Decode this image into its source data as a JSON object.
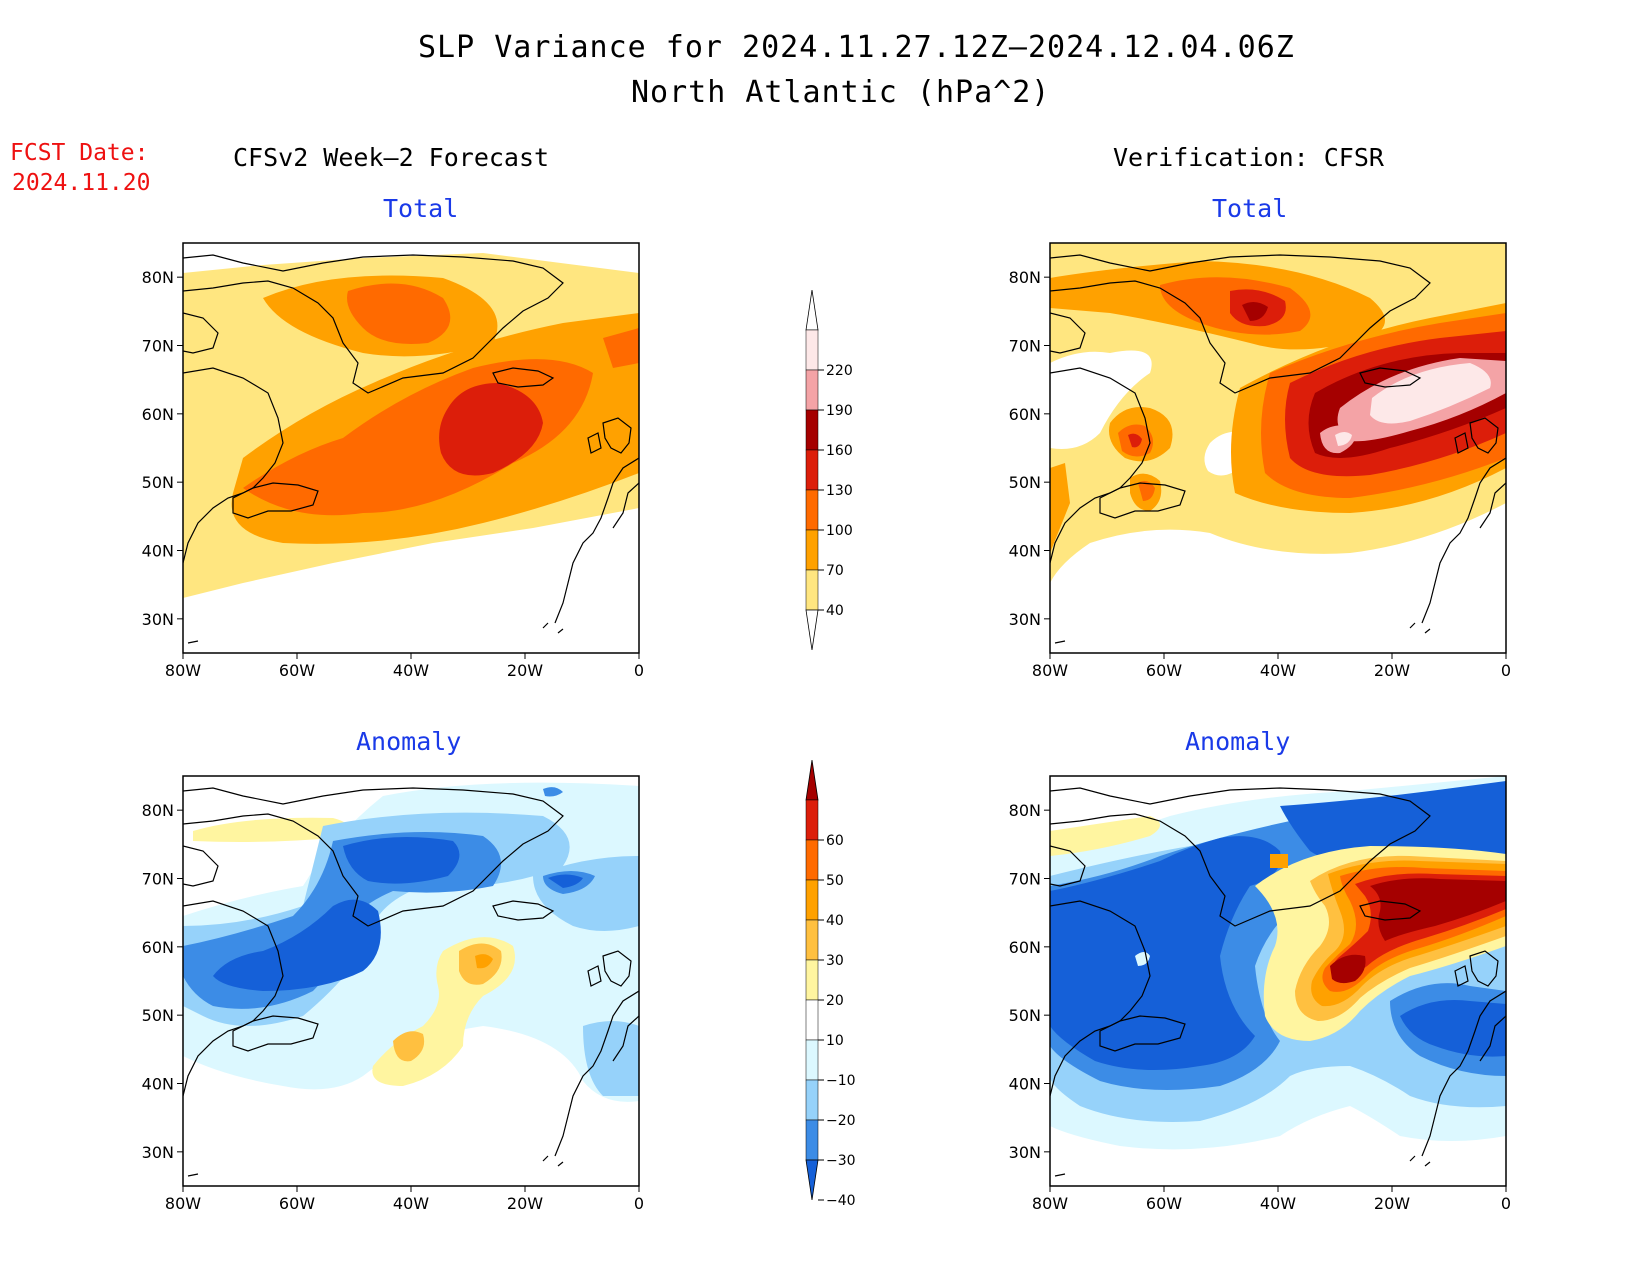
{
  "header": {
    "title_line1": "SLP Variance for 2024.11.27.12Z–2024.12.04.06Z",
    "title_line2": "North Atlantic (hPa^2)",
    "fcst_label": "FCST Date:",
    "fcst_date": "2024.11.20",
    "left_heading": "CFSv2 Week–2 Forecast",
    "right_heading": "Verification: CFSR"
  },
  "panels": {
    "top_left_title": "Total",
    "top_right_title": "Total",
    "bottom_left_title": "Anomaly",
    "bottom_right_title": "Anomaly"
  },
  "axes": {
    "lat_labels": [
      "80N",
      "70N",
      "60N",
      "50N",
      "40N",
      "30N"
    ],
    "lon_labels": [
      "80W",
      "60W",
      "40W",
      "20W",
      "0"
    ]
  },
  "colorbars": {
    "total": {
      "labels": [
        "220",
        "190",
        "160",
        "130",
        "100",
        "70",
        "40"
      ],
      "colors": [
        "#fde8e8",
        "#f4a3a6",
        "#a50000",
        "#dc1e0a",
        "#ff6a00",
        "#ffa100",
        "#ffe680"
      ]
    },
    "anomaly": {
      "labels": [
        "60",
        "50",
        "40",
        "30",
        "20",
        "10",
        "−10",
        "−20",
        "−30",
        "−40"
      ],
      "colors": [
        "#a50000",
        "#dc1e0a",
        "#ff6a00",
        "#ffa100",
        "#ffc040",
        "#fff5a0",
        "#ffffff",
        "#dcf8ff",
        "#96d2fa",
        "#3c8ce6",
        "#1560d8"
      ]
    }
  },
  "map_colors": {
    "tot_40": "#ffe680",
    "tot_70": "#ffa100",
    "tot_100": "#ff6a00",
    "tot_130": "#dc1e0a",
    "tot_160": "#a50000",
    "tot_190": "#f4a3a6",
    "tot_220": "#fde8e8",
    "an_p10": "#fff5a0",
    "an_p20": "#ffc040",
    "an_p30": "#ffa100",
    "an_p40": "#ff6a00",
    "an_p50": "#dc1e0a",
    "an_p60": "#a50000",
    "an_m10": "#dcf8ff",
    "an_m20": "#96d2fa",
    "an_m30": "#3c8ce6",
    "an_m40": "#1560d8"
  }
}
